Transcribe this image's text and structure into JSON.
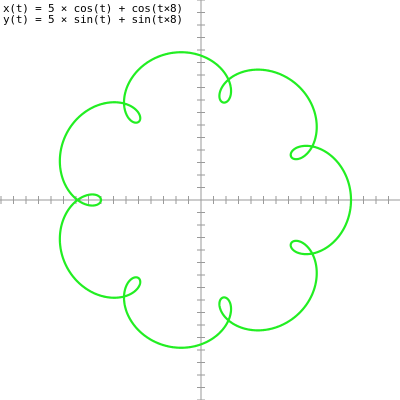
{
  "equations": {
    "x": "x(t) = 5 × cos(t) + cos(t×8)",
    "y": "y(t) = 5 × sin(t) + sin(t×8)"
  },
  "chart_data": {
    "type": "line",
    "title": "",
    "parametric": true,
    "series": [
      {
        "name": "x(t) = 5 × cos(t) + cos(t×8), y(t) = 5 × sin(t) + sin(t×8)",
        "a": 5,
        "b": 1,
        "k": 8,
        "t_range": [
          0,
          6.283185307
        ],
        "color": "#22ee22"
      }
    ],
    "xlim": [
      -8,
      8
    ],
    "ylim": [
      -8,
      8
    ],
    "tick_step": 0.5,
    "grid": false,
    "axis_color": "#9a9a9a"
  }
}
